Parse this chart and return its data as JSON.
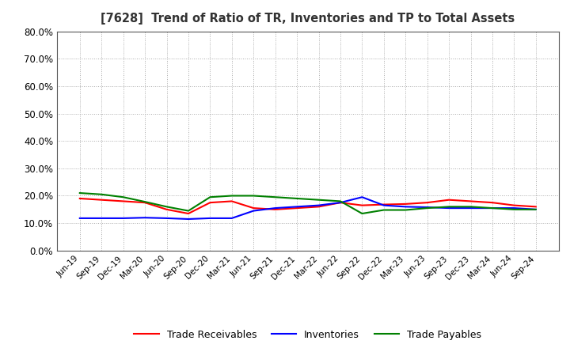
{
  "title": "[7628]  Trend of Ratio of TR, Inventories and TP to Total Assets",
  "x_labels": [
    "Jun-19",
    "Sep-19",
    "Dec-19",
    "Mar-20",
    "Jun-20",
    "Sep-20",
    "Dec-20",
    "Mar-21",
    "Jun-21",
    "Sep-21",
    "Dec-21",
    "Mar-22",
    "Jun-22",
    "Sep-22",
    "Dec-22",
    "Mar-23",
    "Jun-23",
    "Sep-23",
    "Dec-23",
    "Mar-24",
    "Jun-24",
    "Sep-24"
  ],
  "trade_receivables": [
    0.19,
    0.185,
    0.18,
    0.175,
    0.15,
    0.135,
    0.175,
    0.18,
    0.155,
    0.15,
    0.155,
    0.16,
    0.175,
    0.165,
    0.168,
    0.17,
    0.175,
    0.185,
    0.18,
    0.175,
    0.165,
    0.16
  ],
  "inventories": [
    0.118,
    0.118,
    0.118,
    0.12,
    0.118,
    0.115,
    0.118,
    0.118,
    0.145,
    0.155,
    0.16,
    0.165,
    0.175,
    0.195,
    0.165,
    0.16,
    0.158,
    0.155,
    0.155,
    0.155,
    0.155,
    0.15
  ],
  "trade_payables": [
    0.21,
    0.205,
    0.195,
    0.178,
    0.16,
    0.145,
    0.195,
    0.2,
    0.2,
    0.195,
    0.19,
    0.185,
    0.18,
    0.135,
    0.148,
    0.148,
    0.155,
    0.16,
    0.16,
    0.155,
    0.15,
    0.15
  ],
  "tr_color": "#ff0000",
  "inv_color": "#0000ff",
  "tp_color": "#008000",
  "ylim": [
    0.0,
    0.8
  ],
  "yticks": [
    0.0,
    0.1,
    0.2,
    0.3,
    0.4,
    0.5,
    0.6,
    0.7,
    0.8
  ],
  "bg_color": "#ffffff",
  "grid_color": "#aaaaaa",
  "legend_labels": [
    "Trade Receivables",
    "Inventories",
    "Trade Payables"
  ]
}
